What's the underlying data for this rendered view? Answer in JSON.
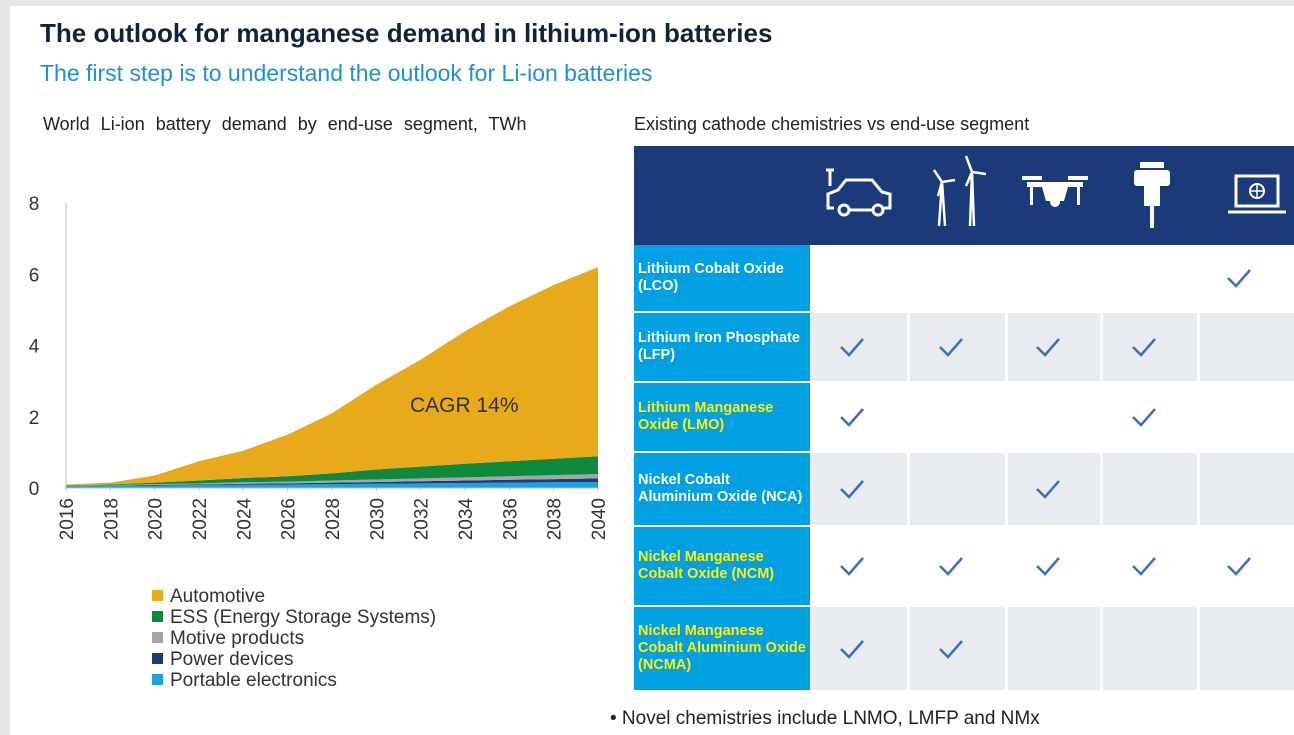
{
  "title": "The outlook for manganese demand in lithium-ion batteries",
  "subtitle": "The first step is to understand the outlook for Li-ion batteries",
  "chart_data": {
    "type": "area",
    "stacked": true,
    "title": "World Li-ion battery demand by end-use segment, TWh",
    "annotation": "CAGR 14%",
    "x": [
      2016,
      2018,
      2020,
      2022,
      2024,
      2026,
      2028,
      2030,
      2032,
      2034,
      2036,
      2038,
      2040
    ],
    "xlim": [
      2016,
      2040
    ],
    "xticks": [
      2016,
      2018,
      2020,
      2022,
      2024,
      2026,
      2028,
      2030,
      2032,
      2034,
      2036,
      2038,
      2040
    ],
    "ylim": [
      0,
      8
    ],
    "yticks": [
      0,
      2,
      4,
      6,
      8
    ],
    "grid": false,
    "series": [
      {
        "name": "Portable electronics",
        "color": "#1aa3e0",
        "values": [
          0.05,
          0.06,
          0.07,
          0.08,
          0.09,
          0.1,
          0.11,
          0.12,
          0.13,
          0.14,
          0.15,
          0.16,
          0.17
        ]
      },
      {
        "name": "Power devices",
        "color": "#1f3a7a",
        "values": [
          0.01,
          0.01,
          0.02,
          0.02,
          0.03,
          0.03,
          0.04,
          0.05,
          0.06,
          0.07,
          0.08,
          0.09,
          0.1
        ]
      },
      {
        "name": "Motive products",
        "color": "#a6a6a6",
        "values": [
          0.01,
          0.01,
          0.02,
          0.03,
          0.04,
          0.05,
          0.06,
          0.07,
          0.08,
          0.09,
          0.1,
          0.11,
          0.12
        ]
      },
      {
        "name": "ESS (Energy Storage Systems)",
        "color": "#0f8a3c",
        "values": [
          0.01,
          0.02,
          0.04,
          0.08,
          0.12,
          0.15,
          0.2,
          0.28,
          0.33,
          0.38,
          0.42,
          0.46,
          0.5
        ]
      },
      {
        "name": "Automotive",
        "color": "#e8a91a",
        "values": [
          0.02,
          0.05,
          0.2,
          0.54,
          0.77,
          1.17,
          1.69,
          2.38,
          3.0,
          3.72,
          4.35,
          4.88,
          5.31
        ]
      }
    ]
  },
  "table": {
    "title": "Existing cathode chemistries vs end-use segment",
    "rows": [
      {
        "label": "Lithium Cobalt Oxide (LCO)",
        "highlight": false,
        "cells": [
          false,
          false,
          false,
          false,
          true
        ]
      },
      {
        "label": "Lithium Iron Phosphate (LFP)",
        "highlight": false,
        "cells": [
          true,
          true,
          true,
          true,
          false
        ]
      },
      {
        "label": "Lithium Manganese Oxide (LMO)",
        "highlight": true,
        "cells": [
          true,
          false,
          false,
          true,
          false
        ]
      },
      {
        "label": "Nickel Cobalt Aluminium Oxide (NCA)",
        "highlight": false,
        "cells": [
          true,
          false,
          true,
          false,
          false
        ]
      },
      {
        "label": "Nickel Manganese Cobalt Oxide (NCM)",
        "highlight": true,
        "cells": [
          true,
          true,
          true,
          true,
          true
        ]
      },
      {
        "label": "Nickel Manganese Cobalt Aluminium Oxide (NCMA)",
        "highlight": true,
        "cells": [
          true,
          true,
          false,
          false,
          false
        ]
      }
    ]
  },
  "note": "• Novel chemistries include LNMO, LMFP and NMx"
}
